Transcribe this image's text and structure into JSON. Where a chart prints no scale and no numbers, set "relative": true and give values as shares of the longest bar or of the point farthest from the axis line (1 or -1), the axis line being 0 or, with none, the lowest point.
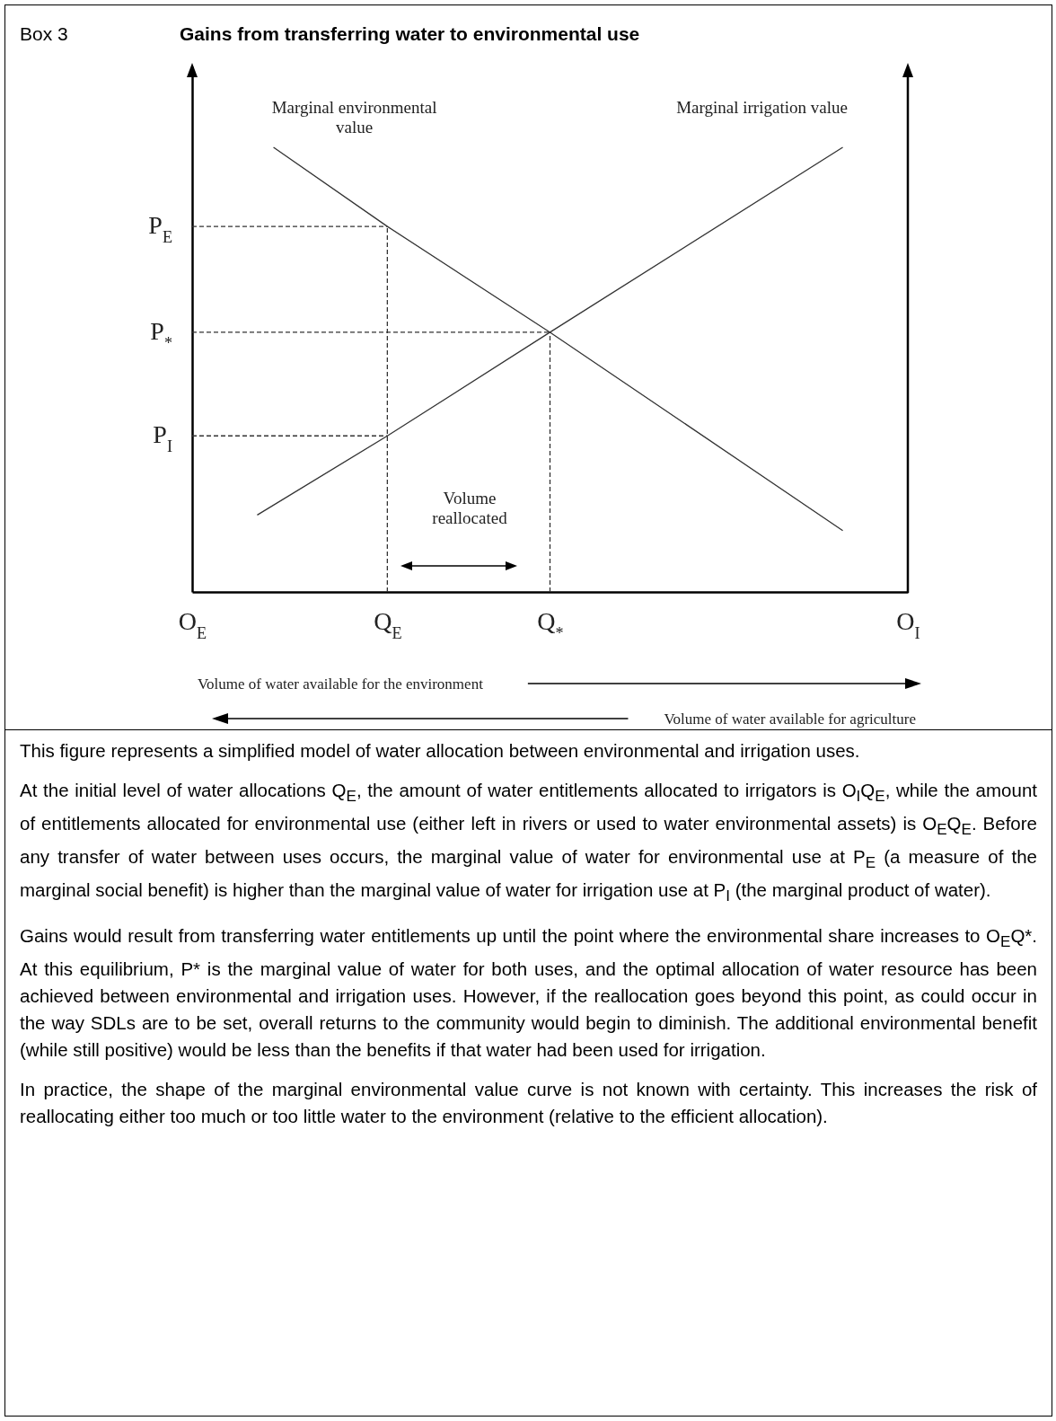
{
  "chart_data": {
    "type": "line",
    "relative": true,
    "title": "Gains from transferring water to environmental use",
    "xlabel": "Volume of water available for the environment",
    "line_style": "solid",
    "categories": [
      "O$_{E}$",
      null,
      null,
      null,
      null,
      null,
      null,
      null,
      null,
      null,
      null,
      null,
      "Q$_{E}$",
      null,
      null,
      null,
      null,
      null,
      null,
      null,
      null,
      null,
      "Q$_{*}$",
      null,
      null,
      null,
      null,
      null,
      null,
      null,
      null,
      null,
      null,
      null,
      null,
      null,
      null,
      null,
      null,
      null,
      null,
      null,
      null,
      null,
      "O$_{I}$"
    ],
    "series": [
      {
        "name": "Marginal environmental value",
        "color": "#333333",
        "values": [
          null,
          null,
          null,
          null,
          null,
          1,
          null,
          null,
          null,
          null,
          null,
          null,
          0.822,
          null,
          null,
          null,
          null,
          null,
          null,
          null,
          null,
          null,
          0.584,
          null,
          null,
          null,
          null,
          null,
          null,
          null,
          null,
          null,
          null,
          null,
          null,
          null,
          null,
          null,
          null,
          null,
          0.138,
          null,
          null,
          null,
          null
        ]
      },
      {
        "name": "Marginal irrigation value",
        "color": "#333333",
        "values": [
          null,
          null,
          null,
          null,
          0.173,
          null,
          null,
          null,
          null,
          null,
          null,
          null,
          0.351,
          null,
          null,
          null,
          null,
          null,
          null,
          null,
          null,
          null,
          0.584,
          null,
          null,
          null,
          null,
          null,
          null,
          null,
          null,
          null,
          null,
          null,
          null,
          null,
          null,
          null,
          null,
          null,
          1,
          null,
          null,
          null,
          null
        ]
      }
    ],
    "ref_lines": [
      {
        "axis": "y",
        "value": 0.822,
        "label": "P$_{E}$",
        "color": "#333333",
        "line_style": "dashed"
      },
      {
        "axis": "y",
        "value": 0.584,
        "label": "P$_{*}$",
        "color": "#333333",
        "line_style": "dashed"
      },
      {
        "axis": "y",
        "value": 0.351,
        "label": "P$_{I}$",
        "color": "#333333",
        "line_style": "dashed"
      },
      {
        "axis": "x",
        "value": "Q$_{E}$",
        "color": "#333333",
        "line_style": "dashed"
      },
      {
        "axis": "x",
        "value": "Q$_{*}$",
        "color": "#333333",
        "line_style": "dashed"
      }
    ],
    "annotations": [
      "Box 3",
      "Volume reallocated",
      "Volume of water available for agriculture",
      "This figure represents a simplified model of water allocation between environmental and irrigation uses.",
      "At the initial level of water allocations Q$_{E}$, the amount of water entitlements allocated to irrigators is O$_{I}$Q$_{E}$, while the amount of entitlements allocated for environmental use (either left in rivers or used to water environmental assets) is O$_{E}$Q$_{E}$. Before any transfer of water between uses occurs, the marginal value of water for environmental use at P$_{E}$ (a measure of the marginal social benefit) is higher than the marginal value of water for irrigation use at P$_{I}$ (the marginal product of water).",
      "Gains would result from transferring water entitlements up until the point where the environmental share increases to O$_{E}$Q*. At this equilibrium, P* is the marginal value of water for both uses, and the optimal allocation of water resource has been achieved between environmental and irrigation uses. However, if the reallocation goes beyond this point, as could occur in the way SDLs are to be set, overall returns to the community would begin to diminish. The additional environmental benefit (while still positive) would be less than the benefits if that water had been used for irrigation.",
      "In practice, the shape of the marginal environmental value curve is not known with certainty. This increases the risk of reallocating either too much or too little water to the environment (relative to the efficient allocation)."
    ]
  }
}
